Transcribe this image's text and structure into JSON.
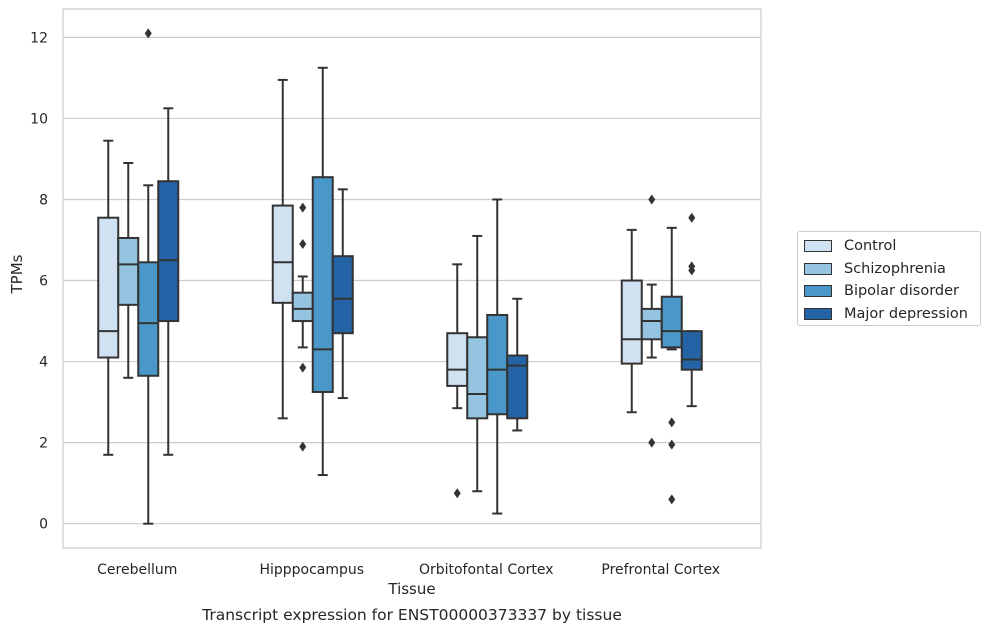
{
  "caption": "Transcript expression for ENST00000373337 by tissue",
  "chart_data": {
    "type": "boxplot",
    "xlabel": "Tissue",
    "ylabel": "TPMs",
    "ylim": [
      -0.6,
      12.7
    ],
    "yticks": [
      0,
      2,
      4,
      6,
      8,
      10,
      12
    ],
    "grid": "horizontal",
    "legend_position": "right",
    "categories": [
      "Cerebellum",
      "Hipppocampus",
      "Orbitofontal Cortex",
      "Prefrontal Cortex"
    ],
    "series": [
      {
        "name": "Control",
        "color": "#d0e1f2",
        "boxes": [
          {
            "whislo": 1.7,
            "q1": 4.1,
            "med": 4.75,
            "q3": 7.55,
            "whishi": 9.45,
            "fliers": []
          },
          {
            "whislo": 2.6,
            "q1": 5.45,
            "med": 6.45,
            "q3": 7.85,
            "whishi": 10.95,
            "fliers": []
          },
          {
            "whislo": 2.85,
            "q1": 3.4,
            "med": 3.8,
            "q3": 4.7,
            "whishi": 6.4,
            "fliers": [
              0.75
            ]
          },
          {
            "whislo": 2.75,
            "q1": 3.95,
            "med": 4.55,
            "q3": 6.0,
            "whishi": 7.25,
            "fliers": []
          }
        ]
      },
      {
        "name": "Schizophrenia",
        "color": "#94c4df",
        "boxes": [
          {
            "whislo": 3.6,
            "q1": 5.4,
            "med": 6.4,
            "q3": 7.05,
            "whishi": 8.9,
            "fliers": []
          },
          {
            "whislo": 4.35,
            "q1": 5.0,
            "med": 5.3,
            "q3": 5.7,
            "whishi": 6.1,
            "fliers": [
              7.8,
              6.9,
              3.85,
              1.9
            ]
          },
          {
            "whislo": 0.8,
            "q1": 2.6,
            "med": 3.2,
            "q3": 4.6,
            "whishi": 7.1,
            "fliers": []
          },
          {
            "whislo": 4.1,
            "q1": 4.55,
            "med": 5.0,
            "q3": 5.3,
            "whishi": 5.9,
            "fliers": [
              8.0,
              2.0
            ]
          }
        ]
      },
      {
        "name": "Bipolar disorder",
        "color": "#4a98c9",
        "boxes": [
          {
            "whislo": 0.0,
            "q1": 3.65,
            "med": 4.95,
            "q3": 6.45,
            "whishi": 8.35,
            "fliers": [
              12.1
            ]
          },
          {
            "whislo": 1.2,
            "q1": 3.25,
            "med": 4.3,
            "q3": 8.55,
            "whishi": 11.25,
            "fliers": []
          },
          {
            "whislo": 0.25,
            "q1": 2.7,
            "med": 3.8,
            "q3": 5.15,
            "whishi": 8.0,
            "fliers": []
          },
          {
            "whislo": 4.3,
            "q1": 4.35,
            "med": 4.75,
            "q3": 5.6,
            "whishi": 7.3,
            "fliers": [
              2.5,
              1.95,
              0.6
            ]
          }
        ]
      },
      {
        "name": "Major depression",
        "color": "#2464a6",
        "boxes": [
          {
            "whislo": 1.7,
            "q1": 5.0,
            "med": 6.5,
            "q3": 8.45,
            "whishi": 10.25,
            "fliers": []
          },
          {
            "whislo": 3.1,
            "q1": 4.7,
            "med": 5.55,
            "q3": 6.6,
            "whishi": 8.25,
            "fliers": []
          },
          {
            "whislo": 2.3,
            "q1": 2.6,
            "med": 3.9,
            "q3": 4.15,
            "whishi": 5.55,
            "fliers": []
          },
          {
            "whislo": 2.9,
            "q1": 3.8,
            "med": 4.05,
            "q3": 4.75,
            "whishi": 4.75,
            "fliers": [
              7.55,
              6.35,
              6.25
            ]
          }
        ]
      }
    ]
  }
}
